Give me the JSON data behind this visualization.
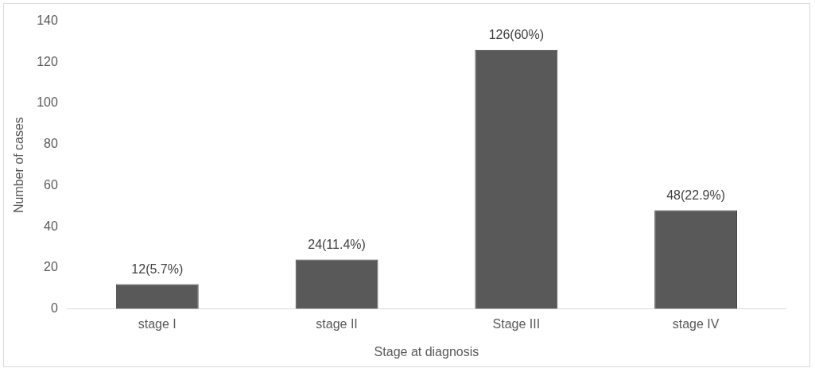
{
  "chart_data": {
    "type": "bar",
    "xlabel": "Stage at diagnosis",
    "ylabel": "Number of cases",
    "categories": [
      "stage I",
      "stage II",
      "Stage III",
      "stage IV"
    ],
    "values": [
      12,
      24,
      126,
      48
    ],
    "value_labels": [
      "12(5.7%)",
      "24(11.4%)",
      "126(60%)",
      "48(22.9%)"
    ],
    "color": "#595959",
    "ylim": [
      0,
      140
    ],
    "yticks": [
      0,
      20,
      40,
      60,
      80,
      100,
      120,
      140
    ],
    "grid": false,
    "legend": false
  }
}
